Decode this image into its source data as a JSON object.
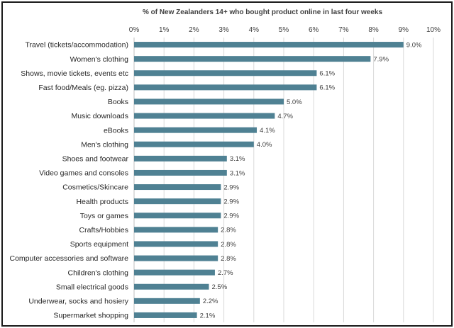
{
  "chart_data": {
    "type": "bar",
    "orientation": "horizontal",
    "title": "% of New Zealanders 14+ who bought product online in last four weeks",
    "xlabel": "",
    "ylabel": "",
    "xlim": [
      0,
      10
    ],
    "ticks": [
      0,
      1,
      2,
      3,
      4,
      5,
      6,
      7,
      8,
      9,
      10
    ],
    "tick_labels": [
      "0%",
      "1%",
      "2%",
      "3%",
      "4%",
      "5%",
      "6%",
      "7%",
      "8%",
      "9%",
      "10%"
    ],
    "categories": [
      "Travel (tickets/accommodation)",
      "Women's clothing",
      "Shows, movie tickets, events etc",
      "Fast food/Meals (eg. pizza)",
      "Books",
      "Music downloads",
      "eBooks",
      "Men's clothing",
      "Shoes and footwear",
      "Video games and consoles",
      "Cosmetics/Skincare",
      "Health products",
      "Toys or games",
      "Crafts/Hobbies",
      "Sports equipment",
      "Computer accessories and software",
      "Children's clothing",
      "Small electrical goods",
      "Underwear, socks and hosiery",
      "Supermarket shopping"
    ],
    "values": [
      9.0,
      7.9,
      6.1,
      6.1,
      5.0,
      4.7,
      4.1,
      4.0,
      3.1,
      3.1,
      2.9,
      2.9,
      2.9,
      2.8,
      2.8,
      2.8,
      2.7,
      2.5,
      2.2,
      2.1
    ],
    "value_labels": [
      "9.0%",
      "7.9%",
      "6.1%",
      "6.1%",
      "5.0%",
      "4.7%",
      "4.1%",
      "4.0%",
      "3.1%",
      "3.1%",
      "2.9%",
      "2.9%",
      "2.9%",
      "2.8%",
      "2.8%",
      "2.8%",
      "2.7%",
      "2.5%",
      "2.2%",
      "2.1%"
    ],
    "bar_color": "#4f8193",
    "grid": true,
    "legend": "none"
  }
}
